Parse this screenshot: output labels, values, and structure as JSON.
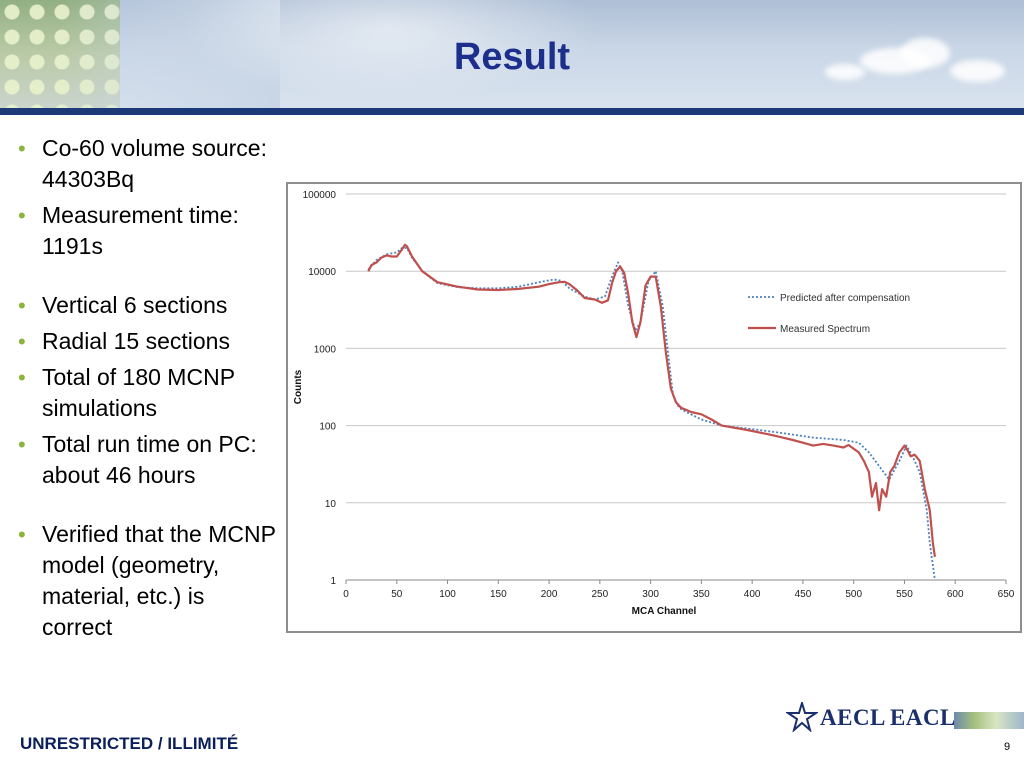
{
  "slide": {
    "title": "Result",
    "footer_label": "UNRESTRICTED / ILLIMITÉ",
    "page_number": "9",
    "logo": {
      "left_text": "AECL",
      "right_text": "EACL",
      "icon": "aecl-star-icon"
    },
    "colors": {
      "title": "#1c2f8c",
      "rule": "#1d3a78",
      "bullet": "#8ab43d"
    }
  },
  "bullets": [
    "Co-60 volume source: 44303Bq",
    "Measurement time: 1191s",
    "Vertical 6 sections",
    "Radial 15 sections",
    "Total of 180 MCNP simulations",
    "Total run time on PC: about 46 hours",
    "Verified that the MCNP model (geometry, material, etc.) is correct"
  ],
  "chart_data": {
    "type": "line",
    "xlabel": "MCA Channel",
    "ylabel": "Counts",
    "xlim": [
      0,
      650
    ],
    "xticks": [
      0,
      50,
      100,
      150,
      200,
      250,
      300,
      350,
      400,
      450,
      500,
      550,
      600,
      650
    ],
    "ylim": [
      1,
      100000
    ],
    "yscale": "log",
    "yticks": [
      1,
      10,
      100,
      1000,
      10000,
      100000
    ],
    "yticklabels": [
      "1",
      "10",
      "100",
      "1000",
      "10000",
      "100000"
    ],
    "grid": "horizontal",
    "legend_position": "right",
    "series": [
      {
        "name": "Predicted after compensation",
        "style": "dotted",
        "color": "#4f81bd",
        "x": [
          22,
          30,
          40,
          50,
          55,
          60,
          65,
          75,
          90,
          110,
          130,
          150,
          170,
          190,
          205,
          212,
          220,
          235,
          245,
          255,
          262,
          268,
          272,
          278,
          285,
          290,
          298,
          305,
          312,
          318,
          322,
          328,
          335,
          350,
          370,
          400,
          430,
          460,
          490,
          505,
          515,
          525,
          535,
          545,
          552,
          558,
          565,
          572,
          575,
          580
        ],
        "y": [
          10500,
          14000,
          16500,
          17500,
          20000,
          20000,
          15000,
          10000,
          7000,
          6200,
          6000,
          6000,
          6300,
          7200,
          7800,
          7500,
          6000,
          4700,
          4300,
          4700,
          8500,
          13000,
          10000,
          3500,
          1700,
          2200,
          7500,
          10000,
          3500,
          700,
          250,
          170,
          150,
          120,
          100,
          90,
          80,
          70,
          65,
          60,
          45,
          30,
          20,
          35,
          55,
          40,
          25,
          8,
          3,
          1
        ]
      },
      {
        "name": "Measured Spectrum",
        "style": "solid",
        "color": "#c0504d",
        "x": [
          22,
          25,
          30,
          35,
          40,
          45,
          50,
          55,
          58,
          60,
          65,
          75,
          90,
          110,
          130,
          150,
          170,
          190,
          200,
          210,
          215,
          220,
          228,
          235,
          245,
          252,
          258,
          262,
          266,
          270,
          274,
          278,
          282,
          286,
          290,
          295,
          300,
          305,
          310,
          315,
          320,
          325,
          330,
          340,
          350,
          360,
          370,
          380,
          390,
          400,
          410,
          420,
          430,
          440,
          450,
          460,
          470,
          480,
          490,
          495,
          500,
          505,
          510,
          515,
          518,
          522,
          525,
          528,
          532,
          536,
          540,
          545,
          550,
          553,
          556,
          560,
          565,
          570,
          575,
          578,
          580
        ],
        "y": [
          10000,
          12000,
          13000,
          15000,
          16000,
          15500,
          15500,
          19000,
          22000,
          21000,
          15500,
          10000,
          7200,
          6300,
          5800,
          5700,
          5900,
          6300,
          6800,
          7200,
          7300,
          6800,
          5600,
          4500,
          4300,
          3900,
          4200,
          7000,
          10000,
          11500,
          9500,
          5000,
          2200,
          1400,
          2200,
          6500,
          8500,
          8500,
          3500,
          900,
          300,
          200,
          170,
          150,
          140,
          120,
          100,
          95,
          90,
          85,
          80,
          75,
          70,
          65,
          60,
          55,
          58,
          55,
          52,
          56,
          50,
          45,
          35,
          25,
          12,
          18,
          8,
          15,
          12,
          25,
          30,
          45,
          55,
          48,
          40,
          42,
          35,
          15,
          8,
          3,
          2
        ]
      }
    ]
  }
}
